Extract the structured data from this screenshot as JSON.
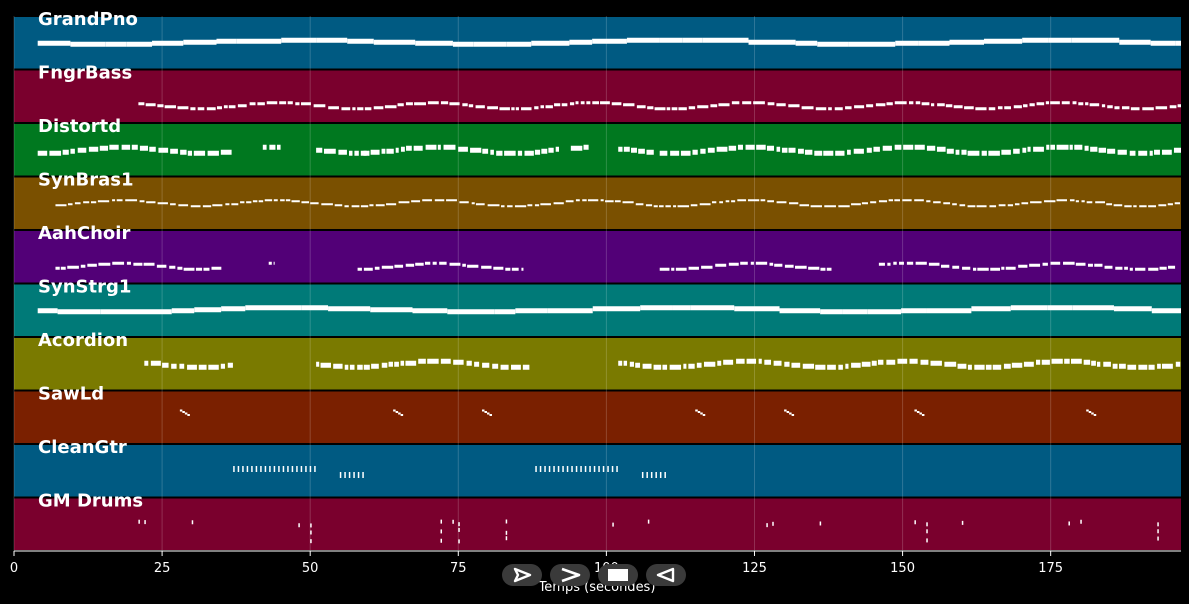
{
  "chart_data": {
    "type": "piano-roll",
    "xlabel": "Temps (secondes)",
    "xlim": [
      0,
      197
    ],
    "xticks": [
      0,
      25,
      50,
      75,
      100,
      125,
      150,
      175
    ],
    "grid": true,
    "tracks": [
      {
        "name": "GrandPno",
        "color": "#005a82",
        "pattern": "sustained",
        "segments": [
          [
            4,
            197
          ]
        ]
      },
      {
        "name": "FngrBass",
        "color": "#7a002d",
        "pattern": "notes",
        "segments": [
          [
            21,
            197
          ]
        ]
      },
      {
        "name": "Distortd",
        "color": "#00781f",
        "pattern": "chunky",
        "segments": [
          [
            4,
            37
          ],
          [
            42,
            45
          ],
          [
            51,
            60
          ],
          [
            59,
            92
          ],
          [
            94,
            97
          ],
          [
            102,
            108
          ],
          [
            109,
            197
          ]
        ]
      },
      {
        "name": "SynBras1",
        "color": "#7a5000",
        "pattern": "dotted",
        "segments": [
          [
            7,
            197
          ]
        ]
      },
      {
        "name": "AahChoir",
        "color": "#520077",
        "pattern": "notes",
        "segments": [
          [
            7,
            35
          ],
          [
            43,
            44
          ],
          [
            58,
            86
          ],
          [
            109,
            138
          ],
          [
            146,
            196
          ]
        ]
      },
      {
        "name": "SynStrg1",
        "color": "#007a78",
        "pattern": "sustained",
        "segments": [
          [
            4,
            197
          ]
        ]
      },
      {
        "name": "Acordion",
        "color": "#7a7a00",
        "pattern": "chunky",
        "segments": [
          [
            22,
            37
          ],
          [
            51,
            87
          ],
          [
            102,
            197
          ]
        ]
      },
      {
        "name": "SawLd",
        "color": "#7a2000",
        "pattern": "sparse",
        "segments": [
          [
            28,
            30
          ],
          [
            64,
            66
          ],
          [
            79,
            81
          ],
          [
            115,
            117
          ],
          [
            130,
            132
          ],
          [
            152,
            154
          ],
          [
            181,
            183
          ]
        ]
      },
      {
        "name": "CleanGtr",
        "color": "#005a82",
        "pattern": "ticks",
        "segments": [
          [
            37,
            51
          ],
          [
            55,
            59
          ],
          [
            88,
            102
          ],
          [
            106,
            110
          ]
        ]
      },
      {
        "name": "GM Drums",
        "color": "#7a002d",
        "pattern": "drums",
        "segments": [
          [
            21,
            22
          ],
          [
            22,
            23
          ],
          [
            30,
            31
          ],
          [
            48,
            49
          ],
          [
            50,
            51
          ],
          [
            72,
            73
          ],
          [
            74,
            75
          ],
          [
            75,
            76
          ],
          [
            83,
            84
          ],
          [
            101,
            102
          ],
          [
            107,
            108
          ],
          [
            127,
            128
          ],
          [
            128,
            129
          ],
          [
            136,
            137
          ],
          [
            152,
            153
          ],
          [
            154,
            155
          ],
          [
            160,
            161
          ],
          [
            178,
            179
          ],
          [
            180,
            181
          ],
          [
            193,
            194
          ]
        ]
      }
    ]
  },
  "controls": [
    {
      "name": "play-forward",
      "icon": "play-outline-icon"
    },
    {
      "name": "next",
      "icon": "chevron-right-icon"
    },
    {
      "name": "stop",
      "icon": "stop-icon"
    },
    {
      "name": "play-reverse",
      "icon": "play-reverse-icon"
    }
  ]
}
